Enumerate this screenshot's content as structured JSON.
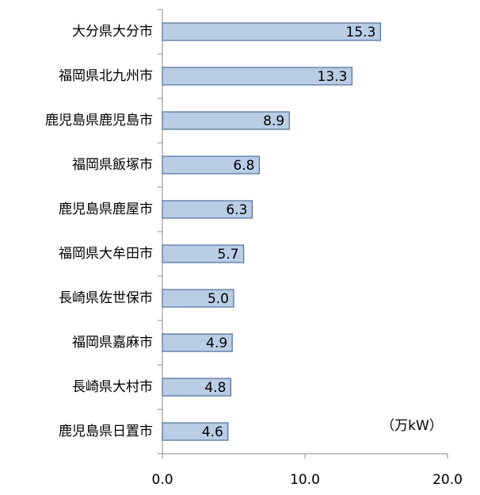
{
  "chart_data": {
    "type": "bar",
    "orientation": "horizontal",
    "categories": [
      "大分県大分市",
      "福岡県北九州市",
      "鹿児島県鹿児島市",
      "福岡県飯塚市",
      "鹿児島県鹿屋市",
      "福岡県大牟田市",
      "長崎県佐世保市",
      "福岡県嘉麻市",
      "長崎県大村市",
      "鹿児島県日置市"
    ],
    "values": [
      15.3,
      13.3,
      8.9,
      6.8,
      6.3,
      5.7,
      5.0,
      4.9,
      4.8,
      4.6
    ],
    "value_labels": [
      "15.3",
      "13.3",
      "8.9",
      "6.8",
      "6.3",
      "5.7",
      "5.0",
      "4.9",
      "4.8",
      "4.6"
    ],
    "color": "#b9cde5",
    "xlim": [
      0,
      20
    ],
    "xticks": [
      {
        "value": 0,
        "label": "0.0"
      },
      {
        "value": 10,
        "label": "10.0"
      },
      {
        "value": 20,
        "label": "20.0"
      }
    ],
    "unit_label": "（万kW）"
  }
}
